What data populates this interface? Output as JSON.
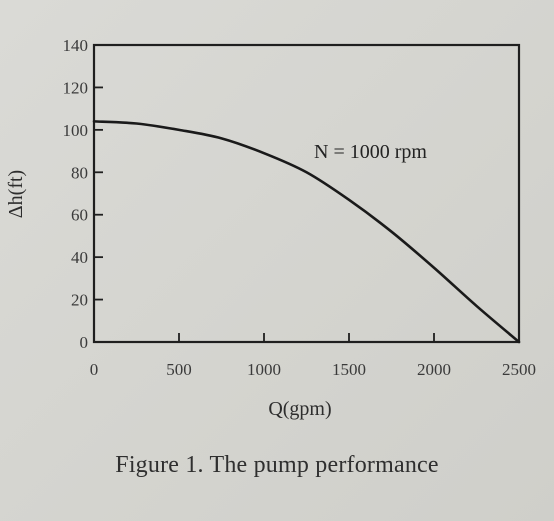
{
  "chart_data": {
    "type": "line",
    "title": "",
    "xlabel": "Q(gpm)",
    "ylabel": "Δh(ft)",
    "xlim": [
      0,
      2500
    ],
    "ylim": [
      0,
      140
    ],
    "x_ticks": [
      0,
      500,
      1000,
      1500,
      2000,
      2500
    ],
    "y_ticks": [
      0,
      20,
      40,
      60,
      80,
      100,
      120,
      140
    ],
    "grid": false,
    "series": [
      {
        "name": "N = 1000 rpm",
        "x": [
          0,
          250,
          500,
          750,
          1000,
          1250,
          1500,
          1750,
          2000,
          2250,
          2500
        ],
        "y": [
          104,
          103,
          100,
          96,
          89,
          80,
          67,
          52,
          35,
          17,
          0
        ]
      }
    ]
  },
  "caption": "Figure 1. The pump performance"
}
